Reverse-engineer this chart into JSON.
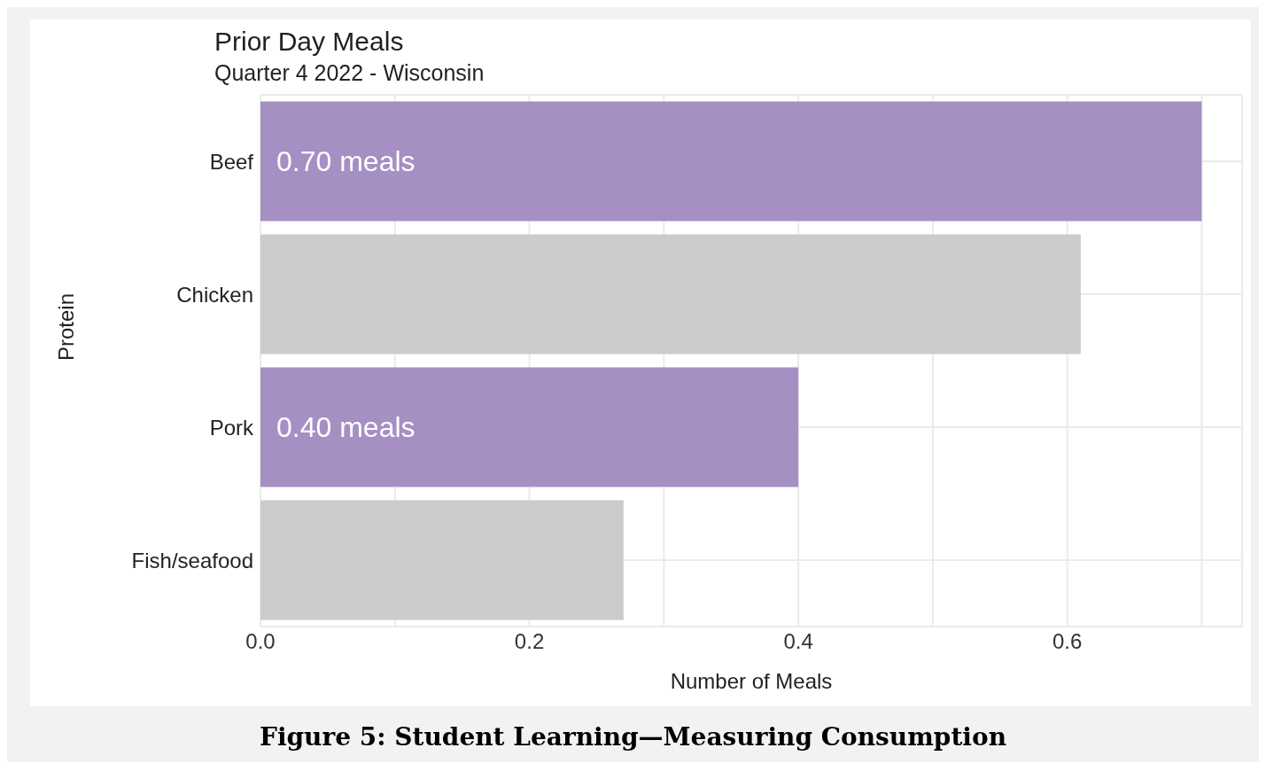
{
  "chart_data": {
    "type": "bar",
    "orientation": "horizontal",
    "title": "Prior Day Meals",
    "subtitle": "Quarter 4 2022 - Wisconsin",
    "xlabel": "Number of Meals",
    "ylabel": "Protein",
    "categories": [
      "Beef",
      "Chicken",
      "Pork",
      "Fish/seafood"
    ],
    "values": [
      0.7,
      0.61,
      0.4,
      0.27
    ],
    "colors": [
      "#a58fc3",
      "#cbcbcb",
      "#a58fc3",
      "#cbcbcb"
    ],
    "value_labels": [
      "0.70 meals",
      null,
      "0.40 meals",
      null
    ],
    "xlim": [
      0,
      0.73
    ],
    "xticks": [
      {
        "value": 0,
        "label": "0.0"
      },
      {
        "value": 0.1,
        "label": null
      },
      {
        "value": 0.2,
        "label": "0.2"
      },
      {
        "value": 0.3,
        "label": null
      },
      {
        "value": 0.4,
        "label": "0.4"
      },
      {
        "value": 0.5,
        "label": null
      },
      {
        "value": 0.6,
        "label": "0.6"
      },
      {
        "value": 0.7,
        "label": null
      }
    ],
    "grid": true,
    "annotations": [
      "Figure 5: Student Learning—Measuring Consumption"
    ]
  }
}
